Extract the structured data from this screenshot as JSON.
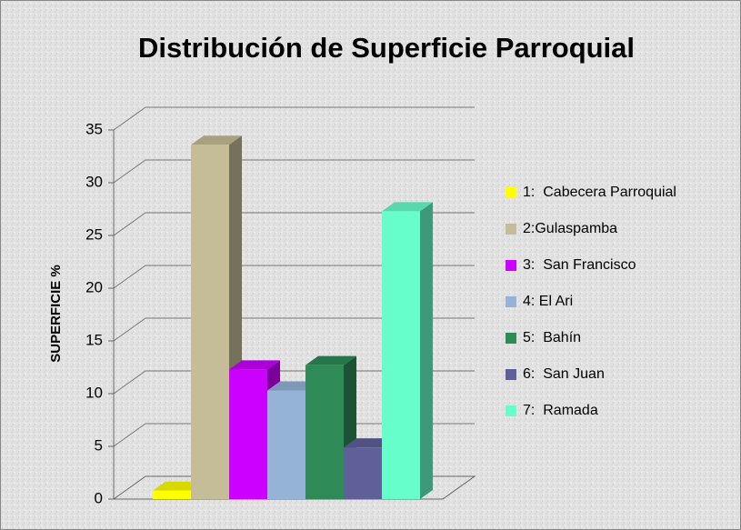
{
  "chart_data": {
    "type": "bar3d",
    "title": "Distribución de Superficie Parroquial",
    "y_label": "SUPERFICIE %",
    "categories": [
      null
    ],
    "series": [
      {
        "name": "1:  Cabecera Parroquial",
        "color": "#ffff00",
        "values": [
          0.8
        ]
      },
      {
        "name": "2:Gulaspamba",
        "color": "#c4bd97",
        "values": [
          33.6
        ]
      },
      {
        "name": "3:  San Francisco",
        "color": "#cc00ff",
        "values": [
          12.3
        ]
      },
      {
        "name": "4: El Ari",
        "color": "#95b3d7",
        "values": [
          10.3
        ]
      },
      {
        "name": "5:  Bahín",
        "color": "#2e8b57",
        "values": [
          12.7
        ]
      },
      {
        "name": "6:  San Juan",
        "color": "#5f5f99",
        "values": [
          4.9
        ]
      },
      {
        "name": "7:  Ramada",
        "color": "#66ffcc",
        "values": [
          27.3
        ]
      }
    ],
    "ylim": [
      0,
      35
    ],
    "yticks": [
      0,
      5,
      10,
      15,
      20,
      25,
      30,
      35
    ],
    "grid": true,
    "legend": "right"
  }
}
